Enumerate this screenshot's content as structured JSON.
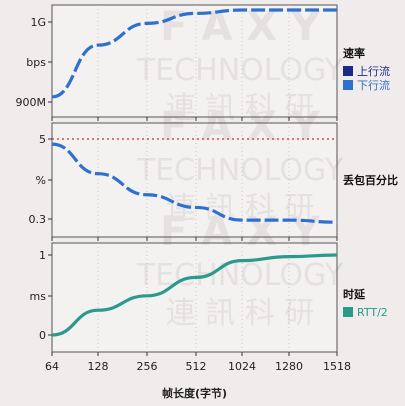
{
  "watermark": {
    "brand": "F A X Y",
    "line2": "TECHNOLOGY",
    "line3": "連 訊 科 研"
  },
  "chart_data": [
    {
      "type": "line",
      "ytick_labels": [
        "1G",
        "bps",
        "900M"
      ],
      "legend": {
        "title": "速率",
        "entries": [
          "上行流",
          "下行流"
        ]
      },
      "x": [
        64,
        128,
        256,
        512,
        1024,
        1280,
        1518
      ],
      "series": [
        {
          "name": "上行流",
          "color": "#1a2a8a",
          "values": [
            null,
            null,
            null,
            null,
            null,
            null,
            null
          ]
        },
        {
          "name": "下行流",
          "color": "#2f6fd0",
          "style": "dashed",
          "values": [
            0.47,
            0.78,
            0.91,
            0.97,
            0.99,
            0.99,
            0.99
          ]
        }
      ]
    },
    {
      "type": "line",
      "ytick_labels": [
        "5",
        "%",
        "0.3"
      ],
      "reference_line": {
        "value": 5,
        "color": "#d42a2a",
        "style": "dotted"
      },
      "legend": {
        "title": "丢包百分比"
      },
      "x": [
        64,
        128,
        256,
        512,
        1024,
        1280,
        1518
      ],
      "series": [
        {
          "color": "#2f6fd0",
          "style": "dashed",
          "values": [
            4.7,
            4.0,
            3.5,
            3.2,
            2.9,
            2.9,
            2.85
          ]
        }
      ]
    },
    {
      "type": "line",
      "ytick_labels": [
        "1",
        "ms",
        "0"
      ],
      "ylim": [
        0,
        1
      ],
      "legend": {
        "title": "时延",
        "entries": [
          "RTT/2"
        ]
      },
      "x": [
        64,
        128,
        256,
        512,
        1024,
        1280,
        1518
      ],
      "xtick_labels": [
        "64",
        "128",
        "256",
        "512",
        "1024",
        "1280",
        "1518"
      ],
      "xlabel": "帧长度(字节)",
      "series": [
        {
          "name": "RTT/2",
          "color": "#2a9a8a",
          "values": [
            0.0,
            0.31,
            0.49,
            0.72,
            0.93,
            0.98,
            1.0
          ]
        }
      ]
    }
  ]
}
